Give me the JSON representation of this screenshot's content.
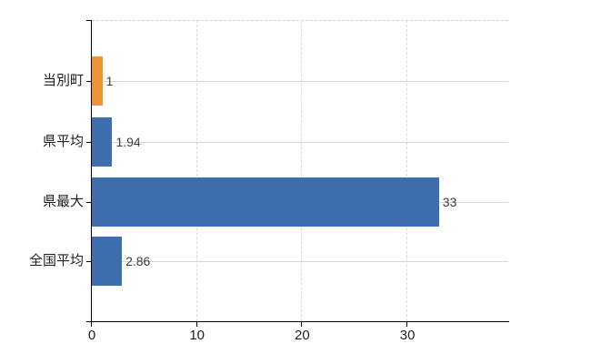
{
  "chart_data": {
    "type": "bar",
    "orientation": "horizontal",
    "title": "",
    "xlabel": "",
    "ylabel": "",
    "categories": [
      "当別町",
      "県平均",
      "県最大",
      "全国平均"
    ],
    "values": [
      1,
      1.94,
      33,
      2.86
    ],
    "data_labels": [
      "1",
      "1.94",
      "33",
      "2.86"
    ],
    "bar_colors": [
      "#ED9434",
      "#3E6EAD",
      "#3E6EAD",
      "#3E6EAD"
    ],
    "highlight_color": "#ED9434",
    "base_color": "#3E6EAD",
    "x_tick_values": [
      0,
      10,
      20,
      30
    ],
    "x_tick_labels": [
      "0",
      "10",
      "20",
      "30"
    ],
    "xlim": [
      0,
      39.6
    ],
    "legend": "none",
    "grid": {
      "horizontal": "solid",
      "vertical": "dashed",
      "top_border": "dashed"
    },
    "axis_color": "#000000",
    "hgrid_color": "#d3d9d2",
    "vgrid_color": "#d9d9d9",
    "tick_text_color": "#1f1f1f",
    "value_text_color": "#3c3c3c"
  }
}
